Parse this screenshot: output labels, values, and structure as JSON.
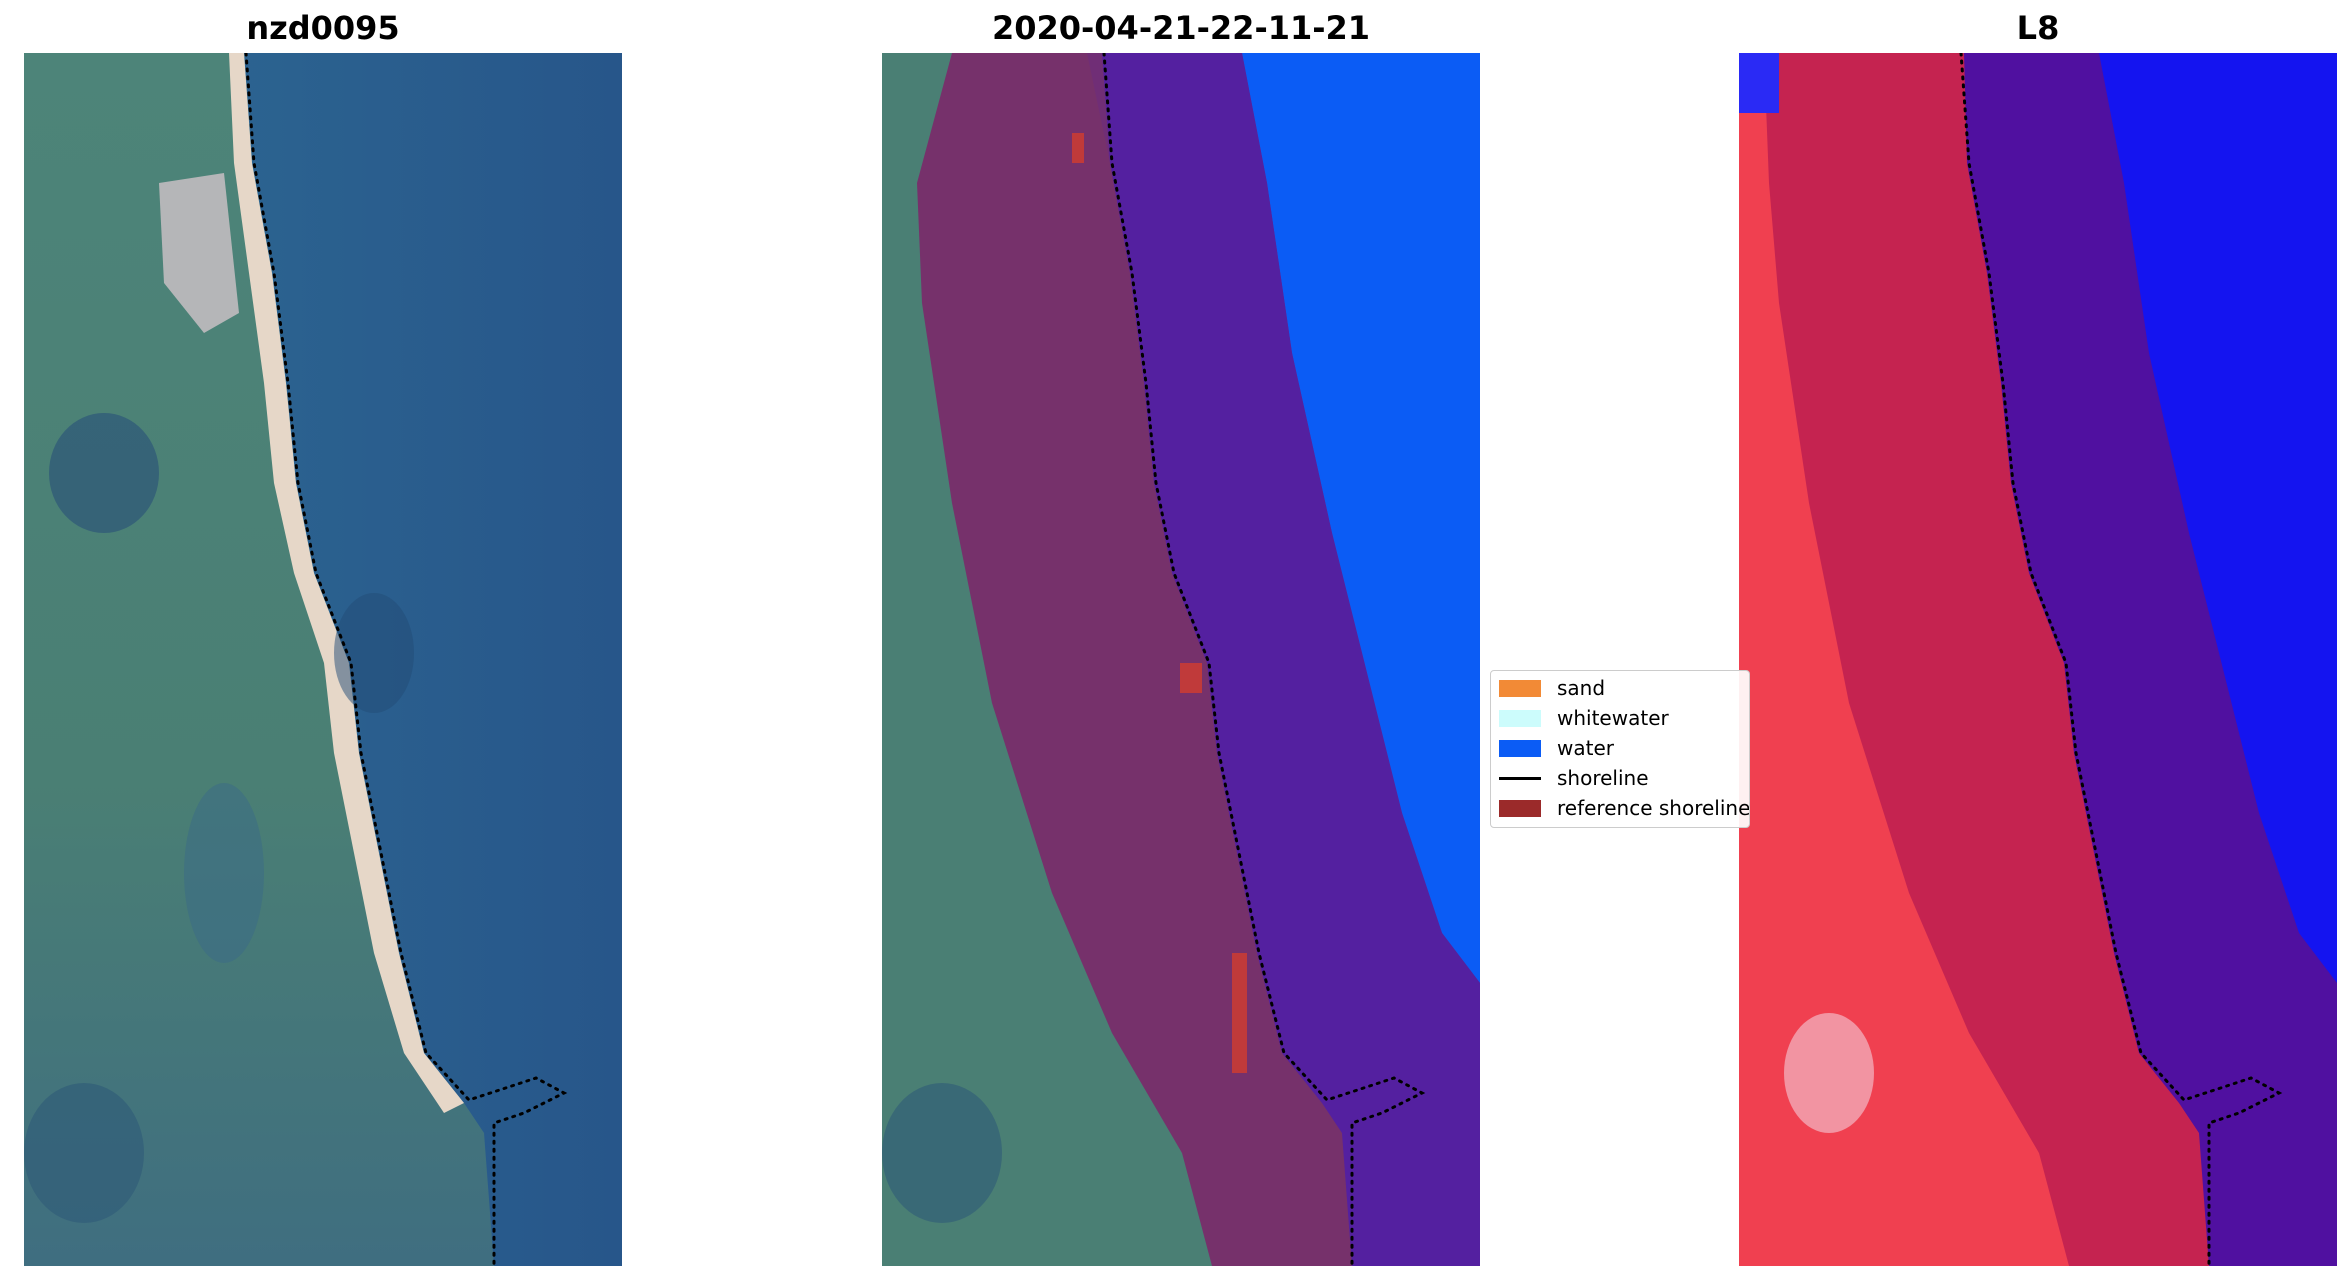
{
  "panels": {
    "left_title": "nzd0095",
    "middle_title": "2020-04-21-22-11-21",
    "right_title": "L8"
  },
  "legend": {
    "items": [
      {
        "label": "sand",
        "color": "#f28a36",
        "kind": "patch"
      },
      {
        "label": "whitewater",
        "color": "#ccfcfc",
        "kind": "patch"
      },
      {
        "label": "water",
        "color": "#0b5cf5",
        "kind": "patch"
      },
      {
        "label": "shoreline",
        "color": "#000000",
        "kind": "line"
      },
      {
        "label": "reference shoreline",
        "color": "#9b2a2a",
        "kind": "patch"
      }
    ]
  },
  "colors": {
    "ocean_rgb": "#2a5c8c",
    "land_rgb": "#4a7f74",
    "beach_sand": "#e8d8c8",
    "buffer_overlay": "#7a2a6a",
    "water_class": "#0b5cf5",
    "water_in_buffer": "#5420a0",
    "index_land": "#f04050",
    "index_water": "#1414f0",
    "index_buffer_land": "#c02050",
    "index_buffer_water": "#5010a0"
  }
}
